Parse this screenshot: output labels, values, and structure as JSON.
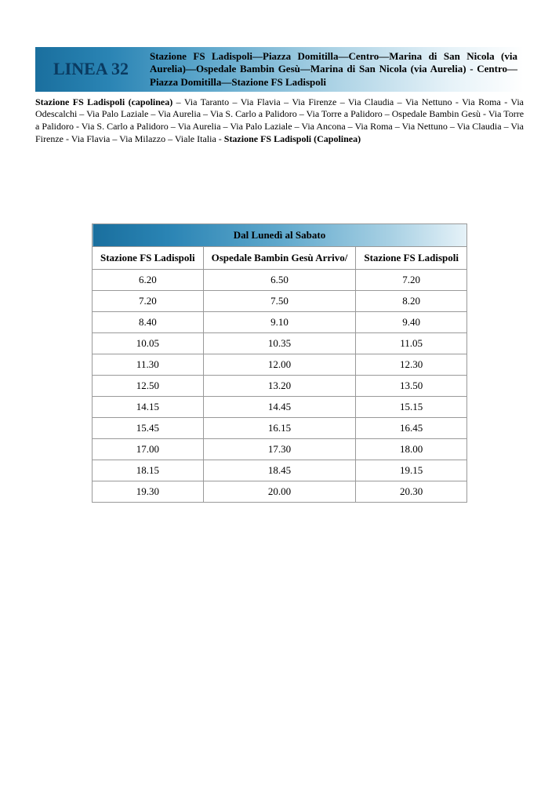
{
  "header": {
    "linea_label": "LINEA 32",
    "route_description": "Stazione FS Ladispoli—Piazza Domitilla—Centro—Marina di San Nicola (via Aurelia)—Ospedale Bambin Gesù—Marina di San Nicola (via Aurelia) - Centro—Piazza Domitilla—Stazione FS Ladispoli"
  },
  "stops_text": {
    "bold_start": "Stazione FS Ladispoli (capolinea)",
    "middle": " – Via Taranto – Via Flavia  – Via Firenze – Via Claudia – Via Nettuno - Via Roma - Via Odescalchi – Via Palo Laziale – Via Aurelia  – Via S. Carlo a Palidoro – Via Torre a Palidoro – Ospedale Bambin Gesù - Via Torre a Palidoro - Via S. Carlo a Palidoro – Via Aurelia – Via Palo Laziale – Via Ancona  – Via Roma – Via Nettuno – Via Claudia – Via Firenze - Via Flavia – Via Milazzo – Viale Italia - ",
    "bold_end": "Stazione FS Ladispoli (Capolinea)"
  },
  "schedule": {
    "title": "Dal Lunedì al Sabato",
    "columns": [
      "Stazione FS Ladispoli",
      "Ospedale Bambin Gesù Arrivo/",
      "Stazione FS Ladispoli"
    ],
    "rows": [
      [
        "6.20",
        "6.50",
        "7.20"
      ],
      [
        "7.20",
        "7.50",
        "8.20"
      ],
      [
        "8.40",
        "9.10",
        "9.40"
      ],
      [
        "10.05",
        "10.35",
        "11.05"
      ],
      [
        "11.30",
        "12.00",
        "12.30"
      ],
      [
        "12.50",
        "13.20",
        "13.50"
      ],
      [
        "14.15",
        "14.45",
        "15.15"
      ],
      [
        "15.45",
        "16.15",
        "16.45"
      ],
      [
        "17.00",
        "17.30",
        "18.00"
      ],
      [
        "18.15",
        "18.45",
        "19.15"
      ],
      [
        "19.30",
        "20.00",
        "20.30"
      ]
    ]
  }
}
